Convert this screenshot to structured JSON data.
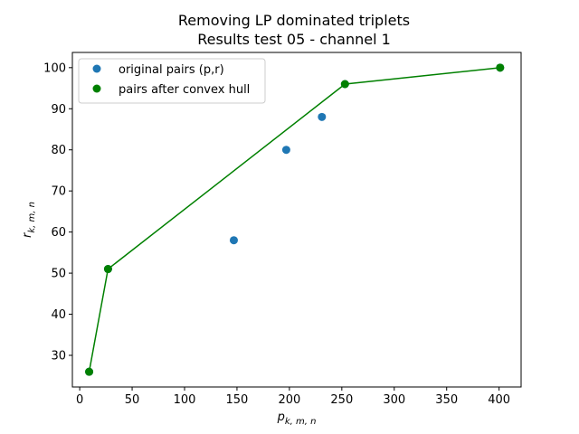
{
  "chart_data": {
    "type": "scatter",
    "title_line1": "Removing LP dominated triplets",
    "title_line2": "Results test 05 - channel 1",
    "xlabel_base": "p",
    "xlabel_sub": "k, m, n",
    "ylabel_base": "r",
    "ylabel_sub": "k, m, n",
    "xlim": [
      -7,
      421
    ],
    "ylim": [
      22.3,
      103.7
    ],
    "xticks": [
      0,
      50,
      100,
      150,
      200,
      250,
      300,
      350,
      400
    ],
    "yticks": [
      30,
      40,
      50,
      60,
      70,
      80,
      90,
      100
    ],
    "grid": false,
    "legend_position": "upper-left",
    "series": [
      {
        "name": "original pairs (p,r)",
        "kind": "scatter",
        "color": "#1f77b4",
        "points": [
          [
            9,
            26
          ],
          [
            27,
            51
          ],
          [
            147,
            58
          ],
          [
            197,
            80
          ],
          [
            231,
            88
          ],
          [
            253,
            96
          ],
          [
            401,
            100
          ]
        ]
      },
      {
        "name": "pairs after convex hull",
        "kind": "line+scatter",
        "color": "#008000",
        "points": [
          [
            9,
            26
          ],
          [
            27,
            51
          ],
          [
            253,
            96
          ],
          [
            401,
            100
          ]
        ]
      }
    ]
  }
}
